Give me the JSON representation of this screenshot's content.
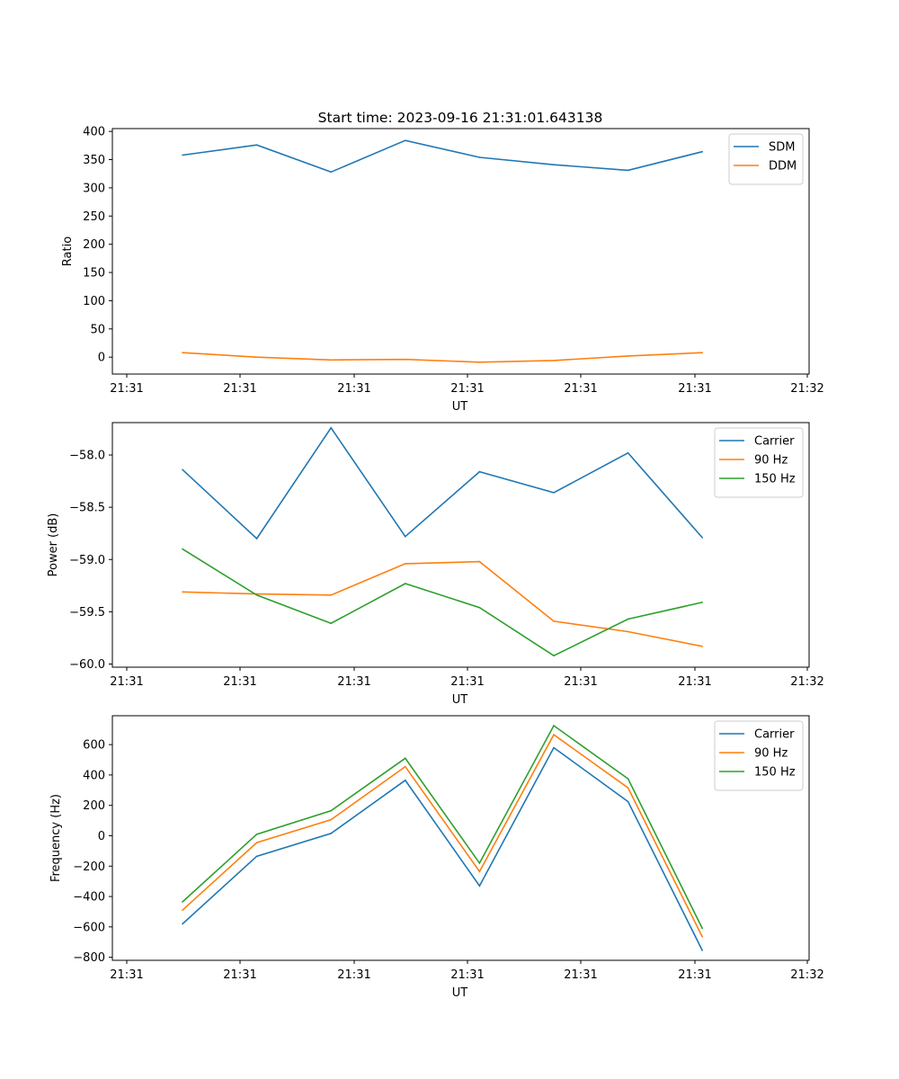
{
  "figure_title": "Start time: 2023-09-16 21:31:01.643138",
  "colors": {
    "blue": "#1f77b4",
    "orange": "#ff7f0e",
    "green": "#2ca02c"
  },
  "chart_data": [
    {
      "type": "line",
      "title": "Start time: 2023-09-16 21:31:01.643138",
      "xlabel": "UT",
      "ylabel": "Ratio",
      "x_tick_labels": [
        "21:31",
        "21:31",
        "21:31",
        "21:31",
        "21:31",
        "21:31",
        "21:32"
      ],
      "x_points": 8,
      "ylim": [
        -30,
        405
      ],
      "y_ticks": [
        0,
        50,
        100,
        150,
        200,
        250,
        300,
        350,
        400
      ],
      "y_tick_labels": [
        "0",
        "50",
        "100",
        "150",
        "200",
        "250",
        "300",
        "350",
        "400"
      ],
      "legend_position": "top-right",
      "series": [
        {
          "name": "SDM",
          "color": "#1f77b4",
          "values": [
            358,
            376,
            328,
            384,
            354,
            341,
            331,
            364
          ]
        },
        {
          "name": "DDM",
          "color": "#ff7f0e",
          "values": [
            8,
            0,
            -5,
            -4,
            -9,
            -6,
            2,
            8
          ]
        }
      ]
    },
    {
      "type": "line",
      "xlabel": "UT",
      "ylabel": "Power (dB)",
      "x_tick_labels": [
        "21:31",
        "21:31",
        "21:31",
        "21:31",
        "21:31",
        "21:31",
        "21:32"
      ],
      "x_points": 8,
      "ylim": [
        -60.03,
        -57.69
      ],
      "y_ticks": [
        -58.0,
        -58.5,
        -59.0,
        -59.5,
        -60.0
      ],
      "y_tick_labels": [
        "−58.0",
        "−58.5",
        "−59.0",
        "−59.5",
        "−60.0"
      ],
      "legend_position": "top-right",
      "series": [
        {
          "name": "Carrier",
          "color": "#1f77b4",
          "values": [
            -58.14,
            -58.8,
            -57.74,
            -58.78,
            -58.16,
            -58.36,
            -57.98,
            -58.79
          ]
        },
        {
          "name": "90 Hz",
          "color": "#ff7f0e",
          "values": [
            -59.31,
            -59.33,
            -59.34,
            -59.04,
            -59.02,
            -59.59,
            -59.69,
            -59.83
          ]
        },
        {
          "name": "150 Hz",
          "color": "#2ca02c",
          "values": [
            -58.9,
            -59.34,
            -59.61,
            -59.23,
            -59.46,
            -59.92,
            -59.57,
            -59.41
          ]
        }
      ]
    },
    {
      "type": "line",
      "xlabel": "UT",
      "ylabel": "Frequency (Hz)",
      "x_tick_labels": [
        "21:31",
        "21:31",
        "21:31",
        "21:31",
        "21:31",
        "21:31",
        "21:32"
      ],
      "x_points": 8,
      "ylim": [
        -820,
        790
      ],
      "y_ticks": [
        600,
        400,
        200,
        0,
        -200,
        -400,
        -600,
        -800
      ],
      "y_tick_labels": [
        "600",
        "400",
        "200",
        "0",
        "−200",
        "−400",
        "−600",
        "−800"
      ],
      "legend_position": "top-right",
      "series": [
        {
          "name": "Carrier",
          "color": "#1f77b4",
          "values": [
            -580,
            -135,
            15,
            365,
            -330,
            580,
            225,
            -755
          ]
        },
        {
          "name": "90 Hz",
          "color": "#ff7f0e",
          "values": [
            -490,
            -45,
            105,
            455,
            -235,
            665,
            315,
            -665
          ]
        },
        {
          "name": "150 Hz",
          "color": "#2ca02c",
          "values": [
            -435,
            10,
            165,
            510,
            -180,
            725,
            375,
            -610
          ]
        }
      ]
    }
  ]
}
